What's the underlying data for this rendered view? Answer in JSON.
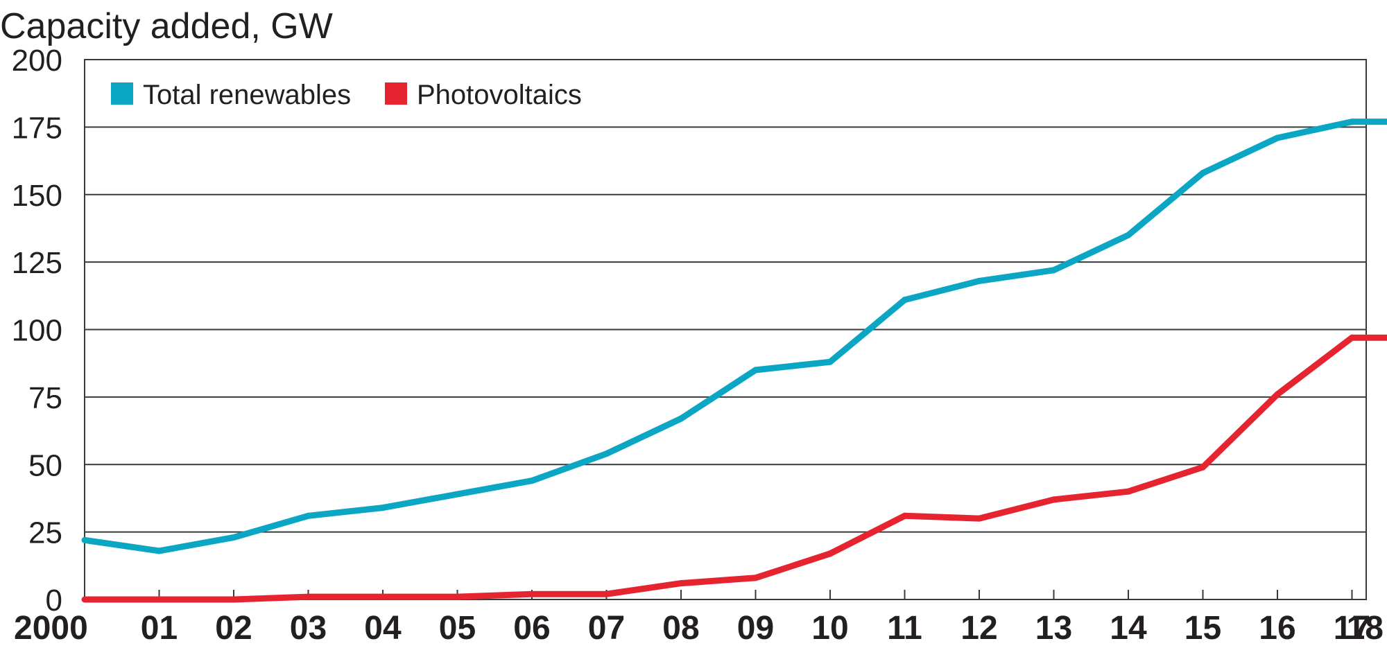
{
  "chart_data": {
    "type": "line",
    "title": "Capacity added, GW",
    "xlabel": "",
    "ylabel": "",
    "x": [
      "2000",
      "01",
      "02",
      "03",
      "04",
      "05",
      "06",
      "07",
      "08",
      "09",
      "10",
      "11",
      "12",
      "13",
      "14",
      "15",
      "16",
      "17",
      "18"
    ],
    "ylim": [
      0,
      200
    ],
    "yticks": [
      "0",
      "25",
      "50",
      "75",
      "100",
      "125",
      "150",
      "175",
      "200"
    ],
    "grid": true,
    "legend_position": "top-left",
    "series": [
      {
        "name": "Total renewables",
        "color": "#0aa6c4",
        "values": [
          22,
          18,
          23,
          31,
          34,
          39,
          44,
          54,
          67,
          85,
          88,
          111,
          118,
          122,
          135,
          158,
          171,
          177,
          177
        ]
      },
      {
        "name": "Photovoltaics",
        "color": "#e5242f",
        "values": [
          0,
          0,
          0,
          1,
          1,
          1,
          2,
          2,
          6,
          8,
          17,
          31,
          30,
          37,
          40,
          49,
          76,
          97,
          97
        ]
      }
    ]
  }
}
